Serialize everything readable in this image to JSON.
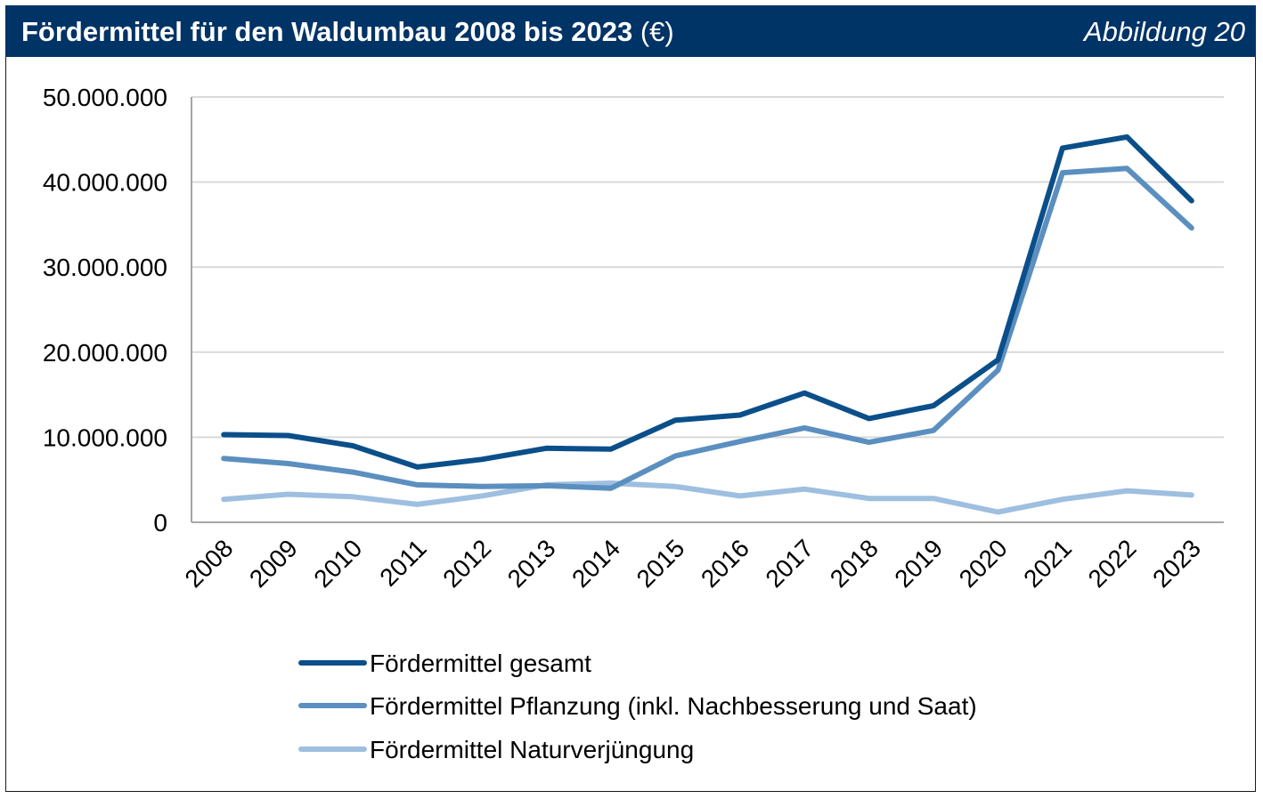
{
  "header": {
    "title_bold": "Fördermittel für den Waldumbau 2008 bis 2023",
    "title_unit": " (€)",
    "figure_label": "Abbildung 20"
  },
  "colors": {
    "header_bg": "#003366",
    "grid": "#d9d9d9",
    "axis": "#a6a6a6"
  },
  "chart_data": {
    "type": "line",
    "title": "Fördermittel für den Waldumbau 2008 bis 2023 (€)",
    "xlabel": "",
    "ylabel": "",
    "ylim": [
      0,
      50000000
    ],
    "yticks": [
      0,
      10000000,
      20000000,
      30000000,
      40000000,
      50000000
    ],
    "ytick_labels": [
      "0",
      "10.000.000",
      "20.000.000",
      "30.000.000",
      "40.000.000",
      "50.000.000"
    ],
    "grid": true,
    "legend_position": "bottom",
    "categories": [
      "2008",
      "2009",
      "2010",
      "2011",
      "2012",
      "2013",
      "2014",
      "2015",
      "2016",
      "2017",
      "2018",
      "2019",
      "2020",
      "2021",
      "2022",
      "2023"
    ],
    "series": [
      {
        "name": "Fördermittel gesamt",
        "color": "#0b4f8a",
        "values": [
          10300000,
          10200000,
          9000000,
          6500000,
          7400000,
          8700000,
          8600000,
          12000000,
          12600000,
          15200000,
          12200000,
          13700000,
          19100000,
          44000000,
          45300000,
          37800000
        ]
      },
      {
        "name": "Fördermittel Pflanzung (inkl. Nachbesserung und Saat)",
        "color": "#5b8fc0",
        "values": [
          7500000,
          6900000,
          5900000,
          4400000,
          4200000,
          4300000,
          4000000,
          7800000,
          9500000,
          11100000,
          9400000,
          10800000,
          17900000,
          41100000,
          41600000,
          34600000
        ]
      },
      {
        "name": "Fördermittel Naturverjüngung",
        "color": "#9ebfdf",
        "values": [
          2700000,
          3300000,
          3000000,
          2100000,
          3100000,
          4400000,
          4600000,
          4200000,
          3100000,
          3900000,
          2800000,
          2800000,
          1200000,
          2700000,
          3700000,
          3200000
        ]
      }
    ]
  }
}
